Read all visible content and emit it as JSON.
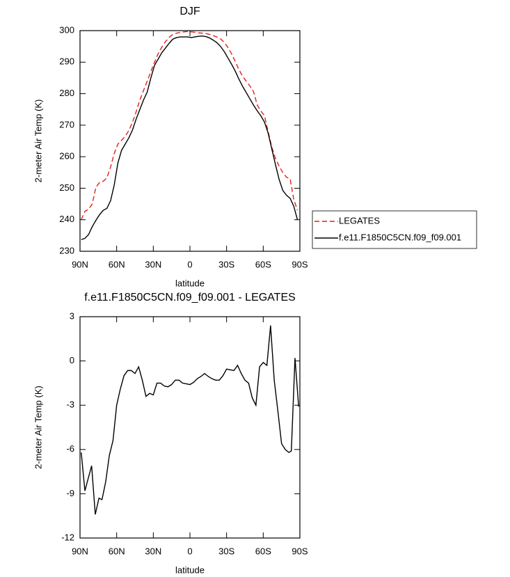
{
  "chart_data": [
    {
      "type": "line",
      "title": "DJF",
      "xlabel": "latitude",
      "ylabel": "2-meter Air Temp (K)",
      "xlim": [
        90,
        -90
      ],
      "ylim": [
        230,
        300
      ],
      "xticks": [
        {
          "value": 90,
          "label": "90N"
        },
        {
          "value": 60,
          "label": "60N"
        },
        {
          "value": 30,
          "label": "30N"
        },
        0,
        {
          "value": -30,
          "label": "30S"
        },
        {
          "value": -60,
          "label": "60S"
        },
        {
          "value": -90,
          "label": "90S"
        }
      ],
      "yticks": [
        230,
        240,
        250,
        260,
        270,
        280,
        290,
        300
      ],
      "legend": "right",
      "x": [
        89,
        86,
        83,
        80,
        77,
        74,
        71,
        68,
        65,
        62,
        59,
        56,
        53,
        50,
        47,
        44,
        41,
        38,
        35,
        32,
        29,
        26,
        23,
        20,
        17,
        14,
        11,
        8,
        5,
        2,
        -1,
        -4,
        -7,
        -10,
        -13,
        -16,
        -19,
        -22,
        -25,
        -28,
        -31,
        -34,
        -37,
        -40,
        -43,
        -46,
        -49,
        -52,
        -55,
        -58,
        -61,
        -64,
        -67,
        -70,
        -73,
        -76,
        -79,
        -82,
        -85,
        -88
      ],
      "series": [
        {
          "name": "LEGATES",
          "color": "#e0201b",
          "line_style": "dashed",
          "values": [
            240,
            242.7,
            243.3,
            245,
            250.3,
            251.8,
            252.2,
            253.3,
            256.7,
            261,
            264,
            265.2,
            266.5,
            268.3,
            271,
            274.3,
            278,
            281,
            284,
            287,
            290,
            292.7,
            294.8,
            296.5,
            297.9,
            298.8,
            299.2,
            299.4,
            299.6,
            299.7,
            299.6,
            299.5,
            299.3,
            299.2,
            299.1,
            298.8,
            298.4,
            298,
            297.4,
            296.3,
            294.7,
            292.7,
            290.3,
            287.7,
            285.6,
            284,
            282.5,
            280.7,
            276.5,
            274.5,
            273,
            268,
            263,
            259.5,
            257,
            255,
            253.5,
            253,
            246.5,
            243
          ]
        },
        {
          "name": "f.e11.F1850C5CN.f09_f09.001",
          "color": "#000000",
          "line_style": "solid",
          "values": [
            233.7,
            234.1,
            235.3,
            237.8,
            239.8,
            241.6,
            243,
            243.6,
            246,
            251,
            258,
            262,
            264,
            266,
            268.5,
            272,
            275,
            278,
            280.5,
            285,
            289,
            291,
            293,
            294.5,
            296,
            297.3,
            297.8,
            298,
            298,
            298,
            297.8,
            298,
            298.2,
            298.3,
            298.1,
            297.7,
            297,
            296.2,
            295,
            293.4,
            291.4,
            289.4,
            287.2,
            284.7,
            282.4,
            280.4,
            278.4,
            276.4,
            274.6,
            273,
            271,
            267.5,
            262.5,
            257.5,
            252.8,
            249.3,
            247.8,
            246.8,
            244.3,
            240
          ]
        }
      ]
    },
    {
      "type": "line",
      "title": "f.e11.F1850C5CN.f09_f09.001 - LEGATES",
      "xlabel": "latitude",
      "ylabel": "2-meter Air Temp (K)",
      "xlim": [
        90,
        -90
      ],
      "ylim": [
        -12,
        3
      ],
      "xticks": [
        {
          "value": 90,
          "label": "90N"
        },
        {
          "value": 60,
          "label": "60N"
        },
        {
          "value": 30,
          "label": "30N"
        },
        0,
        {
          "value": -30,
          "label": "30S"
        },
        {
          "value": -60,
          "label": "60S"
        },
        {
          "value": -90,
          "label": "90S"
        }
      ],
      "yticks": [
        -12,
        -9,
        -6,
        -3,
        0,
        3
      ],
      "x": [
        89,
        86,
        80.5,
        77.5,
        74.5,
        72,
        69,
        66,
        63,
        60,
        57,
        54,
        51,
        48,
        45,
        42,
        39,
        36,
        33,
        30,
        27,
        24,
        21,
        18,
        15,
        12,
        9,
        6,
        3,
        0,
        -3,
        -6,
        -9,
        -12,
        -15,
        -18,
        -21,
        -24,
        -27,
        -30,
        -33,
        -36,
        -39,
        -42,
        -45,
        -48,
        -51,
        -54,
        -57,
        -60,
        -63,
        -66,
        -69,
        -72,
        -75,
        -78,
        -81,
        -83,
        -86,
        -89
      ],
      "series": [
        {
          "color": "#000000",
          "line_style": "solid",
          "values": [
            -6.2,
            -8.8,
            -7.1,
            -10.4,
            -9.3,
            -9.4,
            -8.2,
            -6.4,
            -5.4,
            -3,
            -1.9,
            -1,
            -0.65,
            -0.65,
            -0.85,
            -0.4,
            -1.3,
            -2.4,
            -2.2,
            -2.3,
            -1.5,
            -1.5,
            -1.7,
            -1.75,
            -1.6,
            -1.3,
            -1.3,
            -1.5,
            -1.55,
            -1.6,
            -1.45,
            -1.2,
            -1.05,
            -0.85,
            -1.05,
            -1.2,
            -1.3,
            -1.3,
            -1.0,
            -0.55,
            -0.6,
            -0.65,
            -0.3,
            -0.85,
            -1.3,
            -1.5,
            -2.5,
            -3,
            -0.4,
            -0.1,
            -0.3,
            2.4,
            -1.3,
            -3.4,
            -5.6,
            -6,
            -6.2,
            -6.1,
            0.2,
            -3.1
          ]
        }
      ]
    }
  ]
}
